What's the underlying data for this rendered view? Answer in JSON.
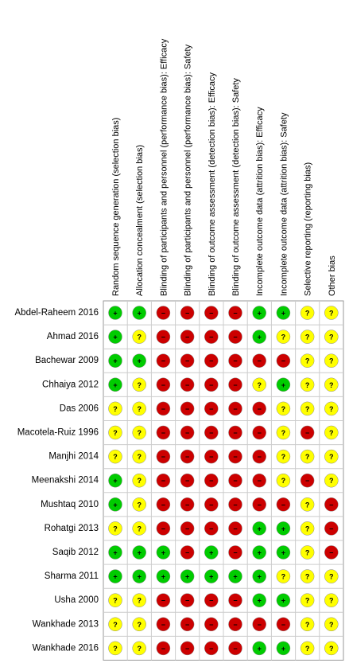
{
  "columns": [
    "Random sequence generation (selection bias)",
    "Allocation concealment (selection bias)",
    "Blinding of participants and personnel (performance bias): Efficacy",
    "Blinding of participants and personnel (performance bias): Safety",
    "Blinding of outcome assessment (detection bias): Efficacy",
    "Blinding of outcome assessment (detection bias): Safety",
    "Incomplete outcome data (attrition bias): Efficacy",
    "Incomplete outcome data (attrition bias): Safety",
    "Selective reporting (reporting bias)",
    "Other bias"
  ],
  "rows": [
    {
      "study": "Abdel-Raheem 2016",
      "judgments": [
        "+",
        "+",
        "−",
        "−",
        "−",
        "−",
        "+",
        "+",
        "?",
        "?"
      ]
    },
    {
      "study": "Ahmad 2016",
      "judgments": [
        "+",
        "?",
        "−",
        "−",
        "−",
        "−",
        "+",
        "?",
        "?",
        "?"
      ]
    },
    {
      "study": "Bachewar 2009",
      "judgments": [
        "+",
        "+",
        "−",
        "−",
        "−",
        "−",
        "−",
        "−",
        "?",
        "?"
      ]
    },
    {
      "study": "Chhaiya 2012",
      "judgments": [
        "+",
        "?",
        "−",
        "−",
        "−",
        "−",
        "?",
        "+",
        "?",
        "?"
      ]
    },
    {
      "study": "Das 2006",
      "judgments": [
        "?",
        "?",
        "−",
        "−",
        "−",
        "−",
        "−",
        "?",
        "?",
        "?"
      ]
    },
    {
      "study": "Macotela-Ruiz 1996",
      "judgments": [
        "?",
        "?",
        "−",
        "−",
        "−",
        "−",
        "−",
        "?",
        "−",
        "?"
      ]
    },
    {
      "study": "Manjhi 2014",
      "judgments": [
        "?",
        "?",
        "−",
        "−",
        "−",
        "−",
        "−",
        "?",
        "?",
        "?"
      ]
    },
    {
      "study": "Meenakshi 2014",
      "judgments": [
        "+",
        "?",
        "−",
        "−",
        "−",
        "−",
        "−",
        "?",
        "−",
        "?"
      ]
    },
    {
      "study": "Mushtaq 2010",
      "judgments": [
        "+",
        "?",
        "−",
        "−",
        "−",
        "−",
        "−",
        "−",
        "?",
        "−"
      ]
    },
    {
      "study": "Rohatgi 2013",
      "judgments": [
        "?",
        "?",
        "−",
        "−",
        "−",
        "−",
        "+",
        "+",
        "?",
        "−"
      ]
    },
    {
      "study": "Saqib 2012",
      "judgments": [
        "+",
        "+",
        "+",
        "−",
        "+",
        "−",
        "+",
        "+",
        "?",
        "−"
      ]
    },
    {
      "study": "Sharma 2011",
      "judgments": [
        "+",
        "+",
        "+",
        "+",
        "+",
        "+",
        "+",
        "?",
        "?",
        "?"
      ]
    },
    {
      "study": "Usha 2000",
      "judgments": [
        "?",
        "?",
        "−",
        "−",
        "−",
        "−",
        "+",
        "+",
        "?",
        "?"
      ]
    },
    {
      "study": "Wankhade 2013",
      "judgments": [
        "?",
        "?",
        "−",
        "−",
        "−",
        "−",
        "−",
        "−",
        "?",
        "?"
      ]
    },
    {
      "study": "Wankhade 2016",
      "judgments": [
        "?",
        "?",
        "−",
        "−",
        "−",
        "−",
        "+",
        "+",
        "?",
        "?"
      ]
    }
  ]
}
